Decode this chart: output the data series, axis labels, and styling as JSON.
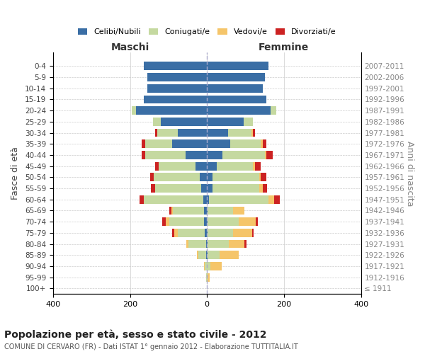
{
  "age_groups": [
    "100+",
    "95-99",
    "90-94",
    "85-89",
    "80-84",
    "75-79",
    "70-74",
    "65-69",
    "60-64",
    "55-59",
    "50-54",
    "45-49",
    "40-44",
    "35-39",
    "30-34",
    "25-29",
    "20-24",
    "15-19",
    "10-14",
    "5-9",
    "0-4"
  ],
  "birth_years": [
    "≤ 1911",
    "1912-1916",
    "1917-1921",
    "1922-1926",
    "1927-1931",
    "1932-1936",
    "1937-1941",
    "1942-1946",
    "1947-1951",
    "1952-1956",
    "1957-1961",
    "1962-1966",
    "1967-1971",
    "1972-1976",
    "1977-1981",
    "1982-1986",
    "1987-1991",
    "1992-1996",
    "1997-2001",
    "2002-2006",
    "2007-2011"
  ],
  "maschi": {
    "celibi": [
      0,
      0,
      0,
      2,
      3,
      5,
      8,
      8,
      10,
      15,
      18,
      30,
      55,
      90,
      75,
      120,
      185,
      165,
      155,
      155,
      165
    ],
    "coniugati": [
      0,
      2,
      5,
      20,
      45,
      70,
      90,
      80,
      155,
      120,
      120,
      95,
      105,
      70,
      55,
      20,
      10,
      0,
      0,
      0,
      0
    ],
    "vedovi": [
      0,
      0,
      3,
      5,
      5,
      10,
      10,
      5,
      0,
      0,
      0,
      0,
      0,
      0,
      0,
      0,
      0,
      0,
      0,
      0,
      0
    ],
    "divorziati": [
      0,
      0,
      0,
      0,
      0,
      5,
      8,
      5,
      10,
      10,
      10,
      10,
      10,
      10,
      5,
      0,
      0,
      0,
      0,
      0,
      0
    ]
  },
  "femmine": {
    "nubili": [
      0,
      0,
      0,
      2,
      2,
      2,
      2,
      2,
      5,
      15,
      15,
      25,
      40,
      60,
      55,
      95,
      165,
      155,
      145,
      150,
      160
    ],
    "coniugate": [
      0,
      2,
      8,
      30,
      55,
      65,
      80,
      65,
      155,
      120,
      120,
      95,
      110,
      80,
      60,
      25,
      15,
      0,
      0,
      0,
      0
    ],
    "vedove": [
      0,
      5,
      30,
      50,
      40,
      50,
      45,
      30,
      15,
      10,
      5,
      5,
      5,
      5,
      5,
      0,
      0,
      0,
      0,
      0,
      0
    ],
    "divorziate": [
      0,
      0,
      0,
      0,
      5,
      5,
      5,
      0,
      15,
      12,
      15,
      15,
      15,
      10,
      5,
      0,
      0,
      0,
      0,
      0,
      0
    ]
  },
  "colors": {
    "celibi": "#3a6ea5",
    "coniugati": "#c5d9a0",
    "vedovi": "#f5c56a",
    "divorziati": "#cc2222"
  },
  "xlim": 400,
  "title": "Popolazione per età, sesso e stato civile - 2012",
  "subtitle": "COMUNE DI CERVARO (FR) - Dati ISTAT 1° gennaio 2012 - Elaborazione TUTTITALIA.IT",
  "ylabel_left": "Fasce di età",
  "ylabel_right": "Anni di nascita",
  "xlabel_maschi": "Maschi",
  "xlabel_femmine": "Femmine",
  "bg_color": "#ffffff",
  "grid_color": "#cccccc"
}
